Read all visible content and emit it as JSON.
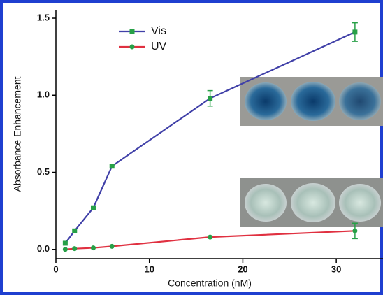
{
  "chart_data": {
    "type": "line",
    "x_label": "Concentration (nM)",
    "y_label": "Absorbance Enhancement",
    "xlim": [
      0,
      35
    ],
    "ylim": [
      -0.06,
      1.55
    ],
    "xticks": [
      0,
      10,
      20,
      30
    ],
    "yticks": [
      {
        "value": 0,
        "label": "0.0"
      },
      0.5,
      {
        "value": 1,
        "label": "1.0"
      },
      {
        "value": 1.5,
        "label": "1.5"
      }
    ],
    "legend": "upper left",
    "marker_color": "#27a047",
    "series": [
      {
        "name": "Vis",
        "color": "#4040a8",
        "x": [
          1,
          2,
          4,
          6,
          16.5,
          32
        ],
        "values": [
          0.04,
          0.12,
          0.27,
          0.54,
          0.98,
          1.41
        ],
        "errors": [
          null,
          null,
          null,
          null,
          0.05,
          0.06
        ]
      },
      {
        "name": "UV",
        "color": "#e03040",
        "x": [
          1,
          2,
          4,
          6,
          16.5,
          32
        ],
        "values": [
          0.0,
          0.005,
          0.01,
          0.02,
          0.08,
          0.12
        ],
        "errors": [
          null,
          null,
          null,
          null,
          null,
          0.05
        ]
      }
    ]
  }
}
